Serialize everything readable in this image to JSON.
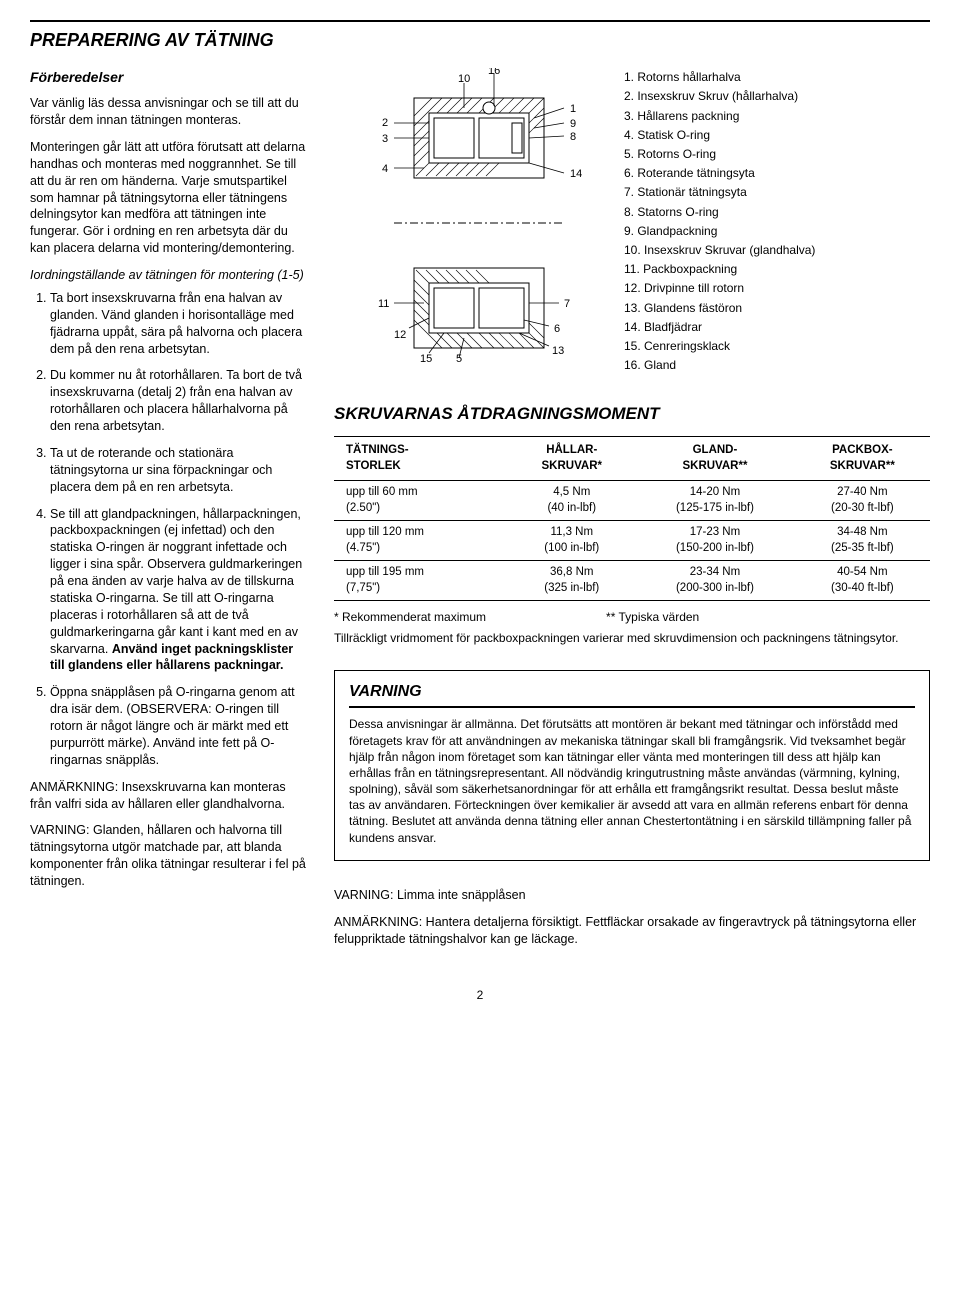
{
  "pageTitle": "PREPARERING AV TÄTNING",
  "prep": {
    "heading": "Förberedelser",
    "p1": "Var vänlig läs dessa anvisningar och se till att du förstår dem innan tätningen monteras.",
    "p2": "Monteringen går lätt att utföra förutsatt att delarna handhas och monteras med noggrannhet. Se till att du är ren om händerna. Varje smutspartikel som hamnar på tätningsytorna eller tätningens delningsytor kan medföra att tätningen inte fungerar. Gör i ordning en ren arbetsyta där du kan placera delarna vid montering/demontering.",
    "subhead": "Iordningställande av tätningen för montering (1-5)",
    "steps": [
      "Ta bort insexskruvarna från ena halvan av glanden. Vänd glanden i horisontalläge med fjädrarna uppåt, sära på halvorna och placera dem på den rena arbetsytan.",
      "Du kommer nu åt rotorhållaren. Ta bort de två insexskruvarna (detalj 2) från ena halvan av rotorhållaren och placera hållarhalvorna på den rena arbetsytan.",
      "Ta ut de roterande och stationära tätningsytorna ur sina förpackningar och placera dem på en ren arbetsyta.",
      "Se till att glandpackningen, hållarpackningen, packboxpackningen (ej infettad) och den statiska O-ringen är noggrant infettade och ligger i sina spår. Observera guldmarkeringen på ena änden av varje halva av de tillskurna statiska O-ringarna. Se till att O-ringarna placeras i rotorhållaren så att de två guldmarkeringarna går kant i kant med en av skarvarna. ",
      "Öppna snäpplåsen på O-ringarna genom att dra isär dem. (OBSERVERA: O-ringen till rotorn är något längre och är märkt med ett purpurrött märke). Använd inte fett på O-ringarnas snäpplås."
    ],
    "step4bold": "Använd inget packningsklister till glandens eller hållarens packningar.",
    "note1": "ANMÄRKNING: Insexskruvarna kan monteras från valfri sida av hållaren eller glandhalvorna.",
    "note2": "VARNING: Glanden, hållaren och halvorna till tätningsytorna utgör matchade par, att blanda komponenter från olika tätningar resulterar i fel på tätningen."
  },
  "diagram": {
    "labels": [
      "1",
      "2",
      "3",
      "4",
      "5",
      "6",
      "7",
      "8",
      "9",
      "10",
      "11",
      "12",
      "13",
      "14",
      "15",
      "16"
    ]
  },
  "parts": [
    "1. Rotorns hållarhalva",
    "2. Insexskruv Skruv (hållarhalva)",
    "3. Hållarens packning",
    "4. Statisk O-ring",
    "5. Rotorns O-ring",
    "6. Roterande tätningsyta",
    "7. Stationär tätningsyta",
    "8. Statorns O-ring",
    "9. Glandpackning",
    "10. Insexskruv Skruvar (glandhalva)",
    "11. Packboxpackning",
    "12. Drivpinne till rotorn",
    "13. Glandens fästöron",
    "14. Bladfjädrar",
    "15. Cenreringsklack",
    "16. Gland"
  ],
  "torque": {
    "title": "SKRUVARNAS ÅTDRAGNINGSMOMENT",
    "headers": [
      "TÄTNINGS-\nSTORLEK",
      "HÅLLAR-\nSKRUVAR*",
      "GLAND-\nSKRUVAR**",
      "PACKBOX-\nSKRUVAR**"
    ],
    "rows": [
      [
        "upp till 60 mm\n(2.50\")",
        "4,5 Nm\n(40 in-lbf)",
        "14-20 Nm\n(125-175 in-lbf)",
        "27-40 Nm\n(20-30 ft-lbf)"
      ],
      [
        "upp till 120 mm\n(4.75\")",
        "11,3 Nm\n(100 in-lbf)",
        "17-23 Nm\n(150-200 in-lbf)",
        "34-48 Nm\n(25-35 ft-lbf)"
      ],
      [
        "upp till 195 mm\n(7,75\")",
        "36,8 Nm\n(325 in-lbf)",
        "23-34 Nm\n(200-300 in-lbf)",
        "40-54 Nm\n(30-40 ft-lbf)"
      ]
    ],
    "foot1": "* Rekommenderat maximum",
    "foot2": "** Typiska värden",
    "foot3": "Tillräckligt vridmoment för packboxpackningen varierar med skruvdimension och packningens tätningsytor."
  },
  "warning": {
    "title": "VARNING",
    "body": "Dessa anvisningar är allmänna. Det förutsätts att montören är bekant med tätningar och införstådd med företagets krav för att användningen av mekaniska tätningar skall bli framgångsrik. Vid tveksamhet begär hjälp från någon inom företaget som kan tätningar eller vänta med monteringen till dess att hjälp kan erhållas från en tätningsrepresentant. All nödvändig kringutrustning måste användas (värmning, kylning, spolning), såväl som säkerhetsanordningar för att erhålla ett framgångsrikt resultat. Dessa beslut måste tas av användaren. Förteckningen över kemikalier är avsedd att vara en allmän referens enbart för denna tätning. Beslutet att använda denna tätning eller annan Chestertontätning i en särskild tillämpning faller på kundens ansvar."
  },
  "extra": {
    "n1": "VARNING: Limma inte snäpplåsen",
    "n2": "ANMÄRKNING: Hantera detaljerna försiktigt. Fettfläckar orsakade av fingeravtryck på tätningsytorna eller feluppriktade tätningshalvor kan ge läckage."
  },
  "pageNumber": "2"
}
